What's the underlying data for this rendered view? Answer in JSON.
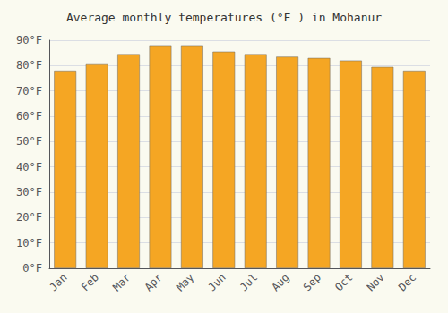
{
  "chart_data": {
    "type": "bar",
    "title": "Average monthly temperatures (°F ) in Mohanūr",
    "categories": [
      "Jan",
      "Feb",
      "Mar",
      "Apr",
      "May",
      "Jun",
      "Jul",
      "Aug",
      "Sep",
      "Oct",
      "Nov",
      "Dec"
    ],
    "values": [
      78,
      80.5,
      84.5,
      88,
      88,
      85.5,
      84.5,
      83.5,
      83,
      82,
      79.5,
      78
    ],
    "color": "#F5A623",
    "ylim": [
      0,
      90
    ],
    "yticks": [
      {
        "value": 0,
        "label": "0°F"
      },
      {
        "value": 10,
        "label": "10°F"
      },
      {
        "value": 20,
        "label": "20°F"
      },
      {
        "value": 30,
        "label": "30°F"
      },
      {
        "value": 40,
        "label": "40°F"
      },
      {
        "value": 50,
        "label": "50°F"
      },
      {
        "value": 60,
        "label": "60°F"
      },
      {
        "value": 70,
        "label": "70°F"
      },
      {
        "value": 80,
        "label": "80°F"
      },
      {
        "value": 90,
        "label": "90°F"
      }
    ],
    "grid": true
  }
}
